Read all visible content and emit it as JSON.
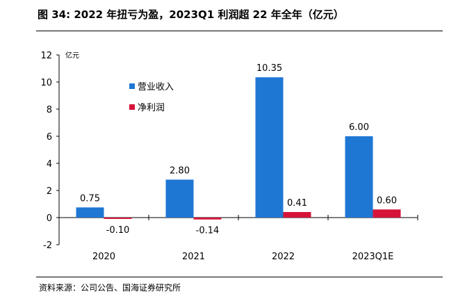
{
  "title": "图 34:  2022 年扭亏为盈，2023Q1 利润超 22 年全年（亿元）",
  "source": "资料来源：公司公告、国海证券研究所",
  "chart_data": {
    "type": "bar",
    "categories": [
      "2020",
      "2021",
      "2022",
      "2023Q1E"
    ],
    "series": [
      {
        "name": "营业收入",
        "color": "#1f77d4",
        "values": [
          0.75,
          2.8,
          10.35,
          6.0
        ],
        "labels": [
          "0.75",
          "2.80",
          "10.35",
          "6.00"
        ]
      },
      {
        "name": "净利润",
        "color": "#d6143a",
        "values": [
          -0.1,
          -0.14,
          0.41,
          0.6
        ],
        "labels": [
          "-0.10",
          "-0.14",
          "0.41",
          "0.60"
        ]
      }
    ],
    "ylabel": "亿元",
    "ylim": [
      -2,
      12
    ],
    "yticks": [
      "-2",
      "0",
      "2",
      "4",
      "6",
      "8",
      "10",
      "12"
    ],
    "legend_position": "upper-left",
    "grid": false
  }
}
